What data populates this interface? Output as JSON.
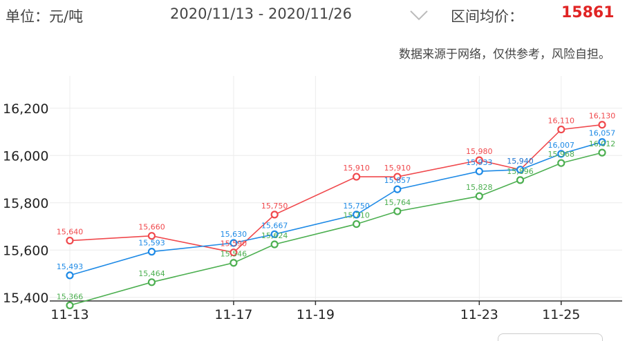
{
  "header": {
    "unit": "单位：元/吨",
    "date_range": "2020/11/13 - 2020/11/26",
    "avg_label": "区间均价：",
    "avg_value": "15861"
  },
  "disclaimer": "数据来源于网络，仅供参考，风险自担。",
  "colors": {
    "red": "#f0484c",
    "blue": "#1e8ae6",
    "green": "#4caf50",
    "grid": "#ececec",
    "accent": "#e02424"
  },
  "chart_data": {
    "type": "line",
    "title": "",
    "xlabel": "",
    "ylabel": "",
    "ylim": [
      15300,
      16300
    ],
    "yticks": [
      15400,
      15600,
      15800,
      16000,
      16200
    ],
    "ytick_labels": [
      "15,400",
      "15,600",
      "15,800",
      "16,000",
      "16,200"
    ],
    "xlim": [
      13,
      26.5
    ],
    "xticks": [
      13,
      17,
      19,
      23,
      25
    ],
    "xtick_labels": [
      "11-13",
      "11-17",
      "11-19",
      "11-23",
      "11-25"
    ],
    "grid": true,
    "series": [
      {
        "color": "red",
        "points": [
          {
            "x": 13,
            "y": 15640,
            "label": "15,640"
          },
          {
            "x": 15,
            "y": 15660,
            "label": "15,660"
          },
          {
            "x": 17,
            "y": 15590,
            "label": "15,590"
          },
          {
            "x": 18,
            "y": 15750,
            "label": "15,750"
          },
          {
            "x": 20,
            "y": 15910,
            "label": "15,910"
          },
          {
            "x": 21,
            "y": 15910,
            "label": "15,910"
          },
          {
            "x": 23,
            "y": 15980,
            "label": "15,980"
          },
          {
            "x": 24,
            "y": 15940,
            "label": "15,940"
          },
          {
            "x": 25,
            "y": 16110,
            "label": "16,110"
          },
          {
            "x": 26,
            "y": 16130,
            "label": "16,130"
          }
        ]
      },
      {
        "color": "blue",
        "points": [
          {
            "x": 13,
            "y": 15493,
            "label": "15,493"
          },
          {
            "x": 15,
            "y": 15593,
            "label": "15,593"
          },
          {
            "x": 17,
            "y": 15630,
            "label": "15,630"
          },
          {
            "x": 18,
            "y": 15667,
            "label": "15,667"
          },
          {
            "x": 20,
            "y": 15750,
            "label": "15,750"
          },
          {
            "x": 21,
            "y": 15857,
            "label": "15,857"
          },
          {
            "x": 23,
            "y": 15933,
            "label": "15,933"
          },
          {
            "x": 24,
            "y": 15940,
            "label": "15,940"
          },
          {
            "x": 25,
            "y": 16007,
            "label": "16,007"
          },
          {
            "x": 26,
            "y": 16057,
            "label": "16,057"
          }
        ]
      },
      {
        "color": "green",
        "points": [
          {
            "x": 13,
            "y": 15366,
            "label": "15,366"
          },
          {
            "x": 15,
            "y": 15464,
            "label": "15,464"
          },
          {
            "x": 17,
            "y": 15546,
            "label": "15,546"
          },
          {
            "x": 18,
            "y": 15624,
            "label": "15,624"
          },
          {
            "x": 20,
            "y": 15710,
            "label": "15,710"
          },
          {
            "x": 21,
            "y": 15764,
            "label": "15,764"
          },
          {
            "x": 23,
            "y": 15828,
            "label": "15,828"
          },
          {
            "x": 24,
            "y": 15896,
            "label": "15,896"
          },
          {
            "x": 25,
            "y": 15968,
            "label": "15,968"
          },
          {
            "x": 26,
            "y": 16012,
            "label": "16,012"
          }
        ]
      }
    ]
  }
}
